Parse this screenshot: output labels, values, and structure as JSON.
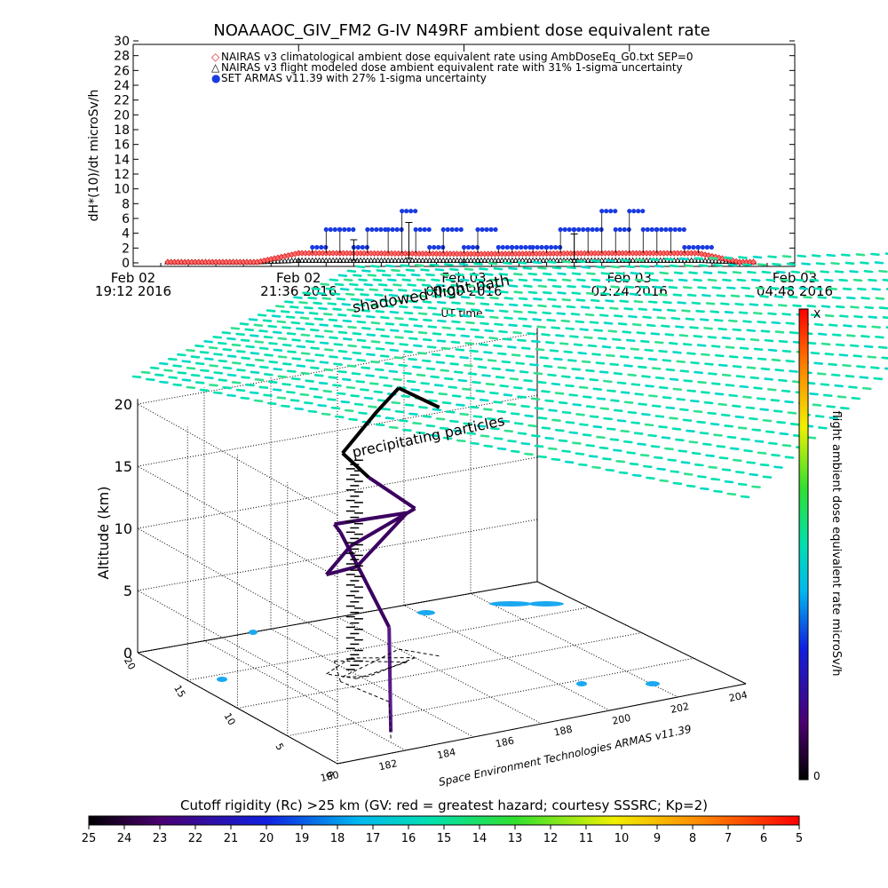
{
  "title": "NOAAAOC_GIV_FM2 G-IV    N49RF  ambient dose equivalent rate",
  "chart_data": [
    {
      "type": "scatter",
      "ylabel": "dH*(10)/dt microSv/h",
      "xlabel": "UT time",
      "ylim": [
        0,
        30
      ],
      "yticks": [
        "0",
        "2",
        "4",
        "6",
        "8",
        "10",
        "12",
        "14",
        "16",
        "18",
        "20",
        "22",
        "24",
        "26",
        "28",
        "30"
      ],
      "xticks": [
        {
          "day": "Feb 02",
          "time": "19:12 2016"
        },
        {
          "day": "Feb 02",
          "time": "21:36 2016"
        },
        {
          "day": "Feb 03",
          "time": "00:00 2016"
        },
        {
          "day": "Feb 03",
          "time": "02:24 2016"
        },
        {
          "day": "Feb 03",
          "time": "04:48 2016"
        }
      ],
      "legend_position": "top",
      "legend": [
        {
          "symbol": "◇",
          "color": "#e02020",
          "label": "NAIRAS v3 climatological ambient dose equivalent rate using AmbDoseEq_G0.txt SEP=0"
        },
        {
          "symbol": "△",
          "color": "#000000",
          "label": "NAIRAS v3 flight modeled dose ambient equivalent rate with 31% 1-sigma uncertainty"
        },
        {
          "symbol": "●",
          "color": "#1a3be0",
          "label": "SET ARMAS v11.39 with 27% 1-sigma uncertainty"
        }
      ],
      "series": [
        {
          "name": "NAIRAS v3 climatological ambient dose equivalent rate using AmbDoseEq_G0.txt SEP=0",
          "hours": [
            0.5,
            1.8,
            2.4,
            3.0,
            5.0,
            7.0,
            8.2,
            8.8,
            9.0
          ],
          "values": [
            0.1,
            0.1,
            1.3,
            1.3,
            1.2,
            1.3,
            1.3,
            0.1,
            0.1
          ]
        },
        {
          "name": "NAIRAS v3 flight modeled dose ambient equivalent rate with 31% 1-sigma uncertainty",
          "hours": [
            0.5,
            1.8,
            2.4,
            3.0,
            5.0,
            7.0,
            8.2,
            8.8,
            9.0
          ],
          "values": [
            0.1,
            0.1,
            0.3,
            0.3,
            0.3,
            0.3,
            0.3,
            0.1,
            0.1
          ]
        },
        {
          "name": "SET ARMAS v11.39 with 27% 1-sigma uncertainty",
          "hours": [
            2.6,
            2.8,
            3.0,
            3.2,
            3.4,
            3.7,
            3.9,
            4.1,
            4.3,
            4.5,
            4.8,
            5.0,
            5.3,
            5.5,
            5.8,
            6.0,
            6.2,
            6.4,
            6.6,
            6.8,
            7.0,
            7.2,
            7.4,
            7.6,
            7.8,
            8.0,
            8.2
          ],
          "values": [
            2.1,
            4.5,
            4.5,
            2.1,
            4.5,
            4.5,
            7.0,
            4.5,
            2.1,
            4.5,
            2.1,
            4.5,
            2.1,
            2.1,
            2.1,
            2.1,
            4.5,
            4.5,
            4.5,
            7.0,
            4.5,
            7.0,
            4.5,
            4.5,
            4.5,
            2.1,
            2.1
          ]
        }
      ]
    },
    {
      "type": "3d-scatter",
      "overlay_labels": [
        "shadowed flight path",
        "precipitating particles"
      ],
      "zlabel": "Altitude (km)",
      "zticks": [
        "0",
        "5",
        "10",
        "15",
        "20"
      ],
      "xticks": [
        "180",
        "182",
        "184",
        "186",
        "188",
        "200",
        "202",
        "204"
      ],
      "yticks": [
        "0",
        "5",
        "10",
        "15",
        "20"
      ],
      "credit": "Space Environment Technologies ARMAS v11.39",
      "flight_track_km": [
        0.5,
        6,
        12,
        11,
        12,
        9,
        8,
        9,
        12,
        16,
        18,
        20,
        21,
        20
      ],
      "colorbar_right": {
        "label": "flight ambient dose equivalent rate microSv/h",
        "top": "X",
        "bottom": "0"
      },
      "colorbar_bottom": {
        "label": "Cutoff rigidity (Rc) >25 km (GV: red = greatest hazard; courtesy SSSRC; Kp=2)",
        "ticks": [
          "25",
          "24",
          "23",
          "22",
          "21",
          "20",
          "19",
          "18",
          "17",
          "16",
          "15",
          "14",
          "13",
          "12",
          "11",
          "10",
          "9",
          "8",
          "7",
          "6",
          "5"
        ]
      }
    }
  ]
}
